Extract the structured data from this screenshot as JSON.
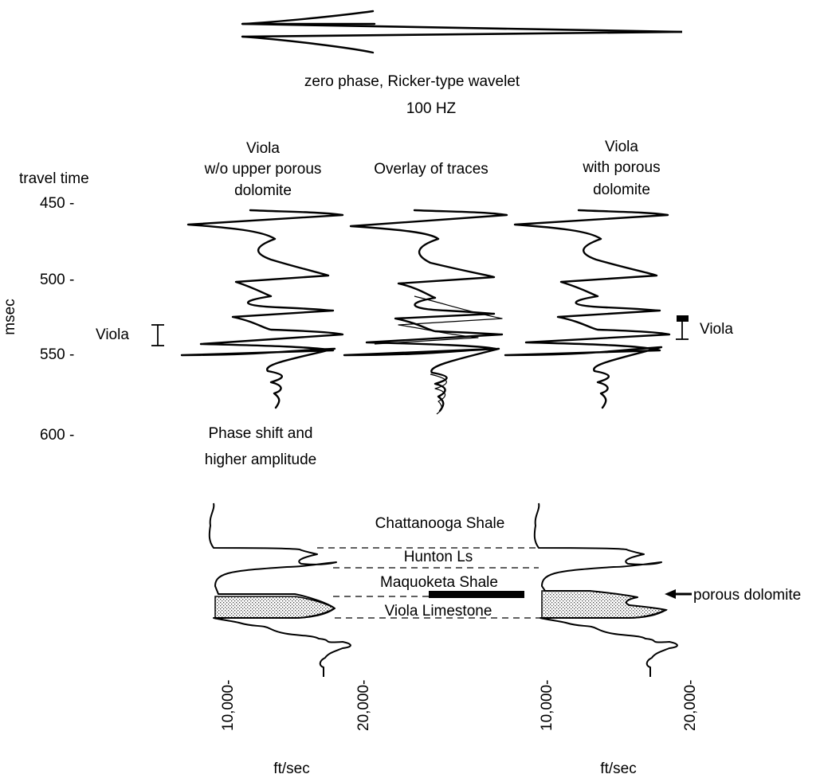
{
  "wavelet": {
    "line1": "zero phase, Ricker-type wavelet",
    "line2": "100 HZ"
  },
  "axis": {
    "title": "travel time",
    "unit": "msec",
    "ticks": [
      "450 -",
      "500 -",
      "550 -",
      "600 -"
    ]
  },
  "traces": {
    "left_title": [
      "Viola",
      "w/o upper porous",
      "dolomite"
    ],
    "center_title": "Overlay of traces",
    "right_title": [
      "Viola",
      "with porous",
      "dolomite"
    ],
    "left_marker": "Viola",
    "right_marker": "Viola",
    "note": [
      "Phase shift and",
      "higher amplitude"
    ]
  },
  "logs": {
    "formations": [
      "Chattanooga Shale",
      "Hunton Ls",
      "Maquoketa Shale",
      "Viola Limestone"
    ],
    "porous_label": "porous dolomite",
    "x_ticks": [
      "10,000-",
      "20,000-",
      "10,000-",
      "20,000-"
    ],
    "x_unit": "ft/sec"
  }
}
